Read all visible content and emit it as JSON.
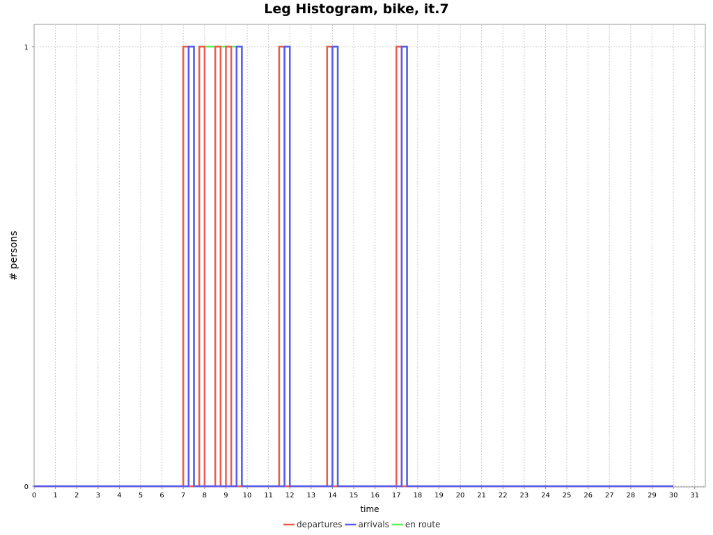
{
  "chart_data": {
    "type": "line",
    "title": "Leg Histogram, bike, it.7",
    "xlabel": "time",
    "ylabel": "# persons",
    "xlim": [
      0,
      31.5
    ],
    "ylim": [
      -0.02,
      1.05
    ],
    "x_ticks": [
      "0",
      "1",
      "2",
      "3",
      "4",
      "5",
      "6",
      "7",
      "8",
      "9",
      "10",
      "11",
      "12",
      "13",
      "14",
      "15",
      "16",
      "17",
      "18",
      "19",
      "20",
      "21",
      "22",
      "23",
      "24",
      "25",
      "26",
      "27",
      "28",
      "29",
      "30",
      "31"
    ],
    "y_ticks": [
      "0",
      "1"
    ],
    "grid": true,
    "legend_position": "bottom",
    "series": [
      {
        "name": "departures",
        "color": "#f05a4f",
        "bins": [
          [
            7.0,
            7.25
          ],
          [
            7.75,
            8.0
          ],
          [
            8.5,
            8.75
          ],
          [
            9.0,
            9.25
          ],
          [
            11.5,
            11.75
          ],
          [
            13.75,
            14.0
          ],
          [
            17.0,
            17.25
          ]
        ],
        "x_end": 30.0
      },
      {
        "name": "arrivals",
        "color": "#5a5af5",
        "bins": [
          [
            7.25,
            7.5
          ],
          [
            9.5,
            9.75
          ],
          [
            11.75,
            12.0
          ],
          [
            14.0,
            14.25
          ],
          [
            17.25,
            17.5
          ]
        ],
        "x_end": 30.0
      },
      {
        "name": "en route",
        "color": "#5af05a",
        "bins": [
          [
            7.0,
            7.5
          ],
          [
            7.75,
            9.75
          ],
          [
            11.5,
            12.0
          ],
          [
            13.75,
            14.25
          ],
          [
            17.0,
            17.5
          ]
        ],
        "x_end": 30.0
      }
    ]
  }
}
